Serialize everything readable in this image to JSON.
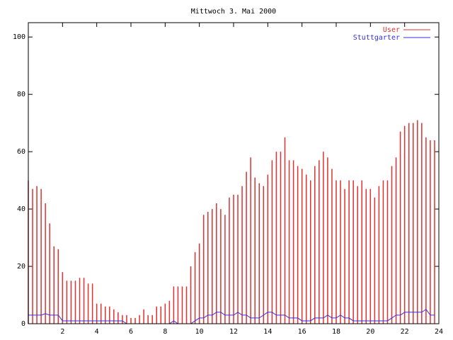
{
  "chart_data": {
    "type": "impulses",
    "title": "Mittwoch 3. Mai 2000",
    "x": [
      0,
      0.25,
      0.5,
      0.75,
      1,
      1.25,
      1.5,
      1.75,
      2,
      2.25,
      2.5,
      2.75,
      3,
      3.25,
      3.5,
      3.75,
      4,
      4.25,
      4.5,
      4.75,
      5,
      5.25,
      5.5,
      5.75,
      6,
      6.25,
      6.5,
      6.75,
      7,
      7.25,
      7.5,
      7.75,
      8,
      8.25,
      8.5,
      8.75,
      9,
      9.25,
      9.5,
      9.75,
      10,
      10.25,
      10.5,
      10.75,
      11,
      11.25,
      11.5,
      11.75,
      12,
      12.25,
      12.5,
      12.75,
      13,
      13.25,
      13.5,
      13.75,
      14,
      14.25,
      14.5,
      14.75,
      15,
      15.25,
      15.5,
      15.75,
      16,
      16.25,
      16.5,
      16.75,
      17,
      17.25,
      17.5,
      17.75,
      18,
      18.25,
      18.5,
      18.75,
      19,
      19.25,
      19.5,
      19.75,
      20,
      20.25,
      20.5,
      20.75,
      21,
      21.25,
      21.5,
      21.75,
      22,
      22.25,
      22.5,
      22.75,
      23,
      23.25,
      23.5,
      23.75
    ],
    "series": [
      {
        "name": "User",
        "color": "#e03030",
        "style": "impulses",
        "values": [
          50,
          47,
          48,
          47,
          42,
          35,
          27,
          26,
          18,
          15,
          15,
          15,
          16,
          16,
          14,
          14,
          7,
          7,
          6,
          6,
          5,
          4,
          3,
          3,
          2,
          2,
          3,
          5,
          3,
          3,
          6,
          6,
          7,
          8,
          13,
          13,
          13,
          13,
          20,
          25,
          28,
          38,
          39,
          40,
          42,
          40,
          38,
          44,
          45,
          45,
          48,
          53,
          58,
          51,
          49,
          48,
          52,
          57,
          60,
          60,
          65,
          57,
          57,
          55,
          54,
          52,
          50,
          55,
          57,
          60,
          58,
          54,
          50,
          50,
          47,
          50,
          50,
          48,
          50,
          47,
          47,
          44,
          48,
          50,
          50,
          55,
          58,
          67,
          69,
          70,
          70,
          71,
          70,
          65,
          64,
          64
        ]
      },
      {
        "name": "Stuttgarter",
        "color": "#3030e0",
        "style": "lines",
        "values": [
          3,
          3,
          3,
          3,
          3.5,
          3,
          3,
          3,
          1,
          1,
          1,
          1,
          1,
          1,
          1,
          1,
          1,
          1,
          1,
          1,
          1,
          1,
          1,
          0,
          0,
          0,
          0,
          0,
          0,
          0,
          0,
          0,
          0,
          0,
          1,
          0,
          0,
          0,
          0,
          1,
          2,
          2,
          3,
          3,
          4,
          4,
          3,
          3,
          3,
          4,
          3,
          3,
          2,
          2,
          2,
          3,
          4,
          4,
          3,
          3,
          3,
          2,
          2,
          2,
          1,
          1,
          1,
          2,
          2,
          2,
          3,
          2,
          2,
          3,
          2,
          2,
          1,
          1,
          1,
          1,
          1,
          1,
          1,
          1,
          1,
          2,
          3,
          3,
          4,
          4,
          4,
          4,
          4,
          5,
          3,
          3
        ]
      }
    ],
    "xlim": [
      0,
      24
    ],
    "xticks": [
      2,
      4,
      6,
      8,
      10,
      12,
      14,
      16,
      18,
      20,
      22,
      24
    ],
    "ylim": [
      0,
      105
    ],
    "yticks": [
      0,
      20,
      40,
      60,
      80,
      100
    ],
    "legend": "top-right"
  }
}
